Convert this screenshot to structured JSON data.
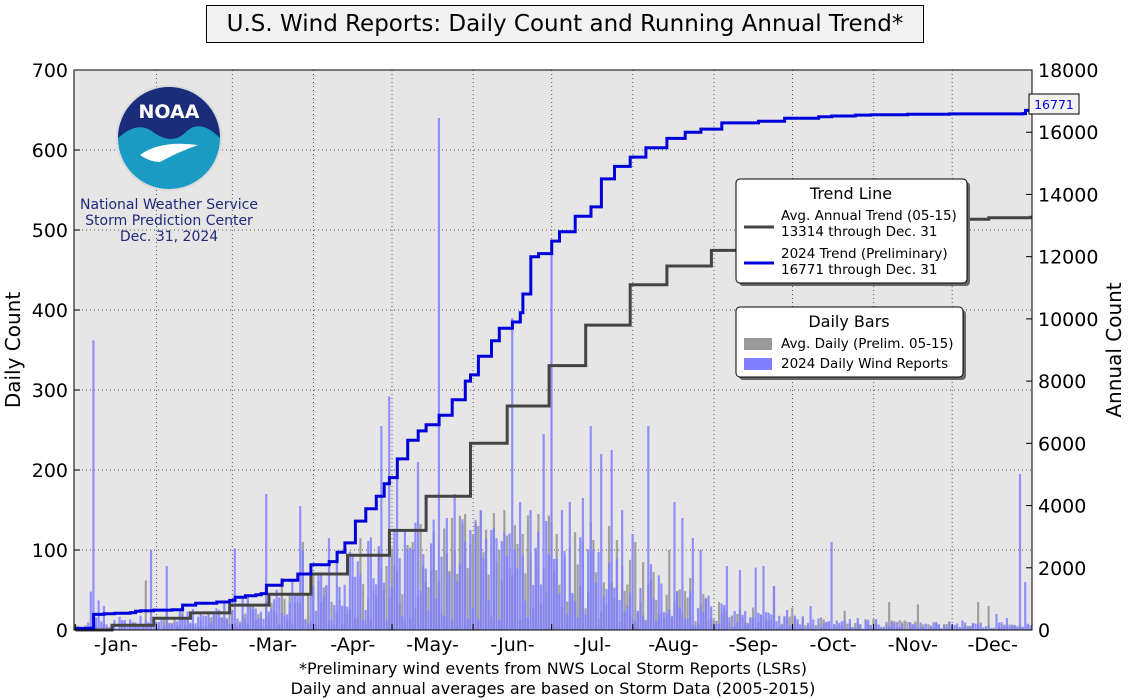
{
  "chart_data": {
    "type": "bar+line",
    "title": "U.S. Wind Reports: Daily Count and Running Annual Trend*",
    "ylabel_left": "Daily Count",
    "ylabel_right": "Annual Count",
    "ylim_left": [
      0,
      700
    ],
    "ylim_right": [
      0,
      18000
    ],
    "yticks_left": [
      "0",
      "100",
      "200",
      "300",
      "400",
      "500",
      "600",
      "700"
    ],
    "yticks_right": [
      "0",
      "2000",
      "4000",
      "6000",
      "8000",
      "10000",
      "12000",
      "14000",
      "16000",
      "18000"
    ],
    "months": [
      "-Jan-",
      "-Feb-",
      "-Mar-",
      "-Apr-",
      "-May-",
      "-Jun-",
      "-Jul-",
      "-Aug-",
      "-Sep-",
      "-Oct-",
      "-Nov-",
      "-Dec-"
    ],
    "grid": true,
    "final_value_label": "16771",
    "footnotes": [
      "*Preliminary wind events from NWS Local Storm Reports (LSRs)",
      "Daily and annual averages are based on Storm Data (2005-2015)"
    ],
    "trend_legend": {
      "title": "Trend Line",
      "entries": [
        {
          "line1": "Avg. Annual Trend (05-15)",
          "line2": "13314 through Dec. 31",
          "color": "#444444"
        },
        {
          "line1": "2024 Trend (Preliminary)",
          "line2": "16771 through Dec. 31",
          "color": "#0000dd"
        }
      ]
    },
    "bars_legend": {
      "title": "Daily Bars",
      "entries": [
        {
          "label": "Avg. Daily (Prelim. 05-15)",
          "color": "#999999"
        },
        {
          "label": "2024 Daily Wind Reports",
          "color": "#8080ff"
        }
      ]
    },
    "series": [
      {
        "name": "Avg. Annual Trend (05-15)",
        "type": "line",
        "axis": "right",
        "color": "#444444",
        "x_day": [
          1,
          15,
          31,
          45,
          60,
          75,
          91,
          105,
          121,
          135,
          152,
          166,
          182,
          196,
          213,
          227,
          244,
          258,
          274,
          288,
          305,
          319,
          335,
          350,
          366
        ],
        "y": [
          0,
          150,
          380,
          550,
          800,
          1150,
          1800,
          2400,
          3200,
          4300,
          6000,
          7200,
          8500,
          9800,
          11100,
          11700,
          12200,
          12500,
          12800,
          12900,
          13050,
          13100,
          13200,
          13250,
          13314
        ]
      },
      {
        "name": "2024 Trend (Preliminary)",
        "type": "line",
        "axis": "right",
        "color": "#0000dd",
        "x_day": [
          1,
          7,
          8,
          12,
          16,
          22,
          24,
          26,
          31,
          38,
          42,
          47,
          55,
          60,
          62,
          66,
          70,
          72,
          74,
          80,
          86,
          91,
          98,
          101,
          104,
          108,
          112,
          116,
          119,
          121,
          124,
          128,
          132,
          135,
          140,
          145,
          150,
          152,
          155,
          160,
          163,
          168,
          171,
          172,
          175,
          178,
          183,
          186,
          192,
          198,
          202,
          207,
          213,
          219,
          227,
          234,
          240,
          248,
          252,
          262,
          272,
          285,
          290,
          299,
          305,
          319,
          335,
          350,
          360,
          363,
          364,
          366
        ],
        "y": [
          50,
          60,
          500,
          520,
          540,
          560,
          600,
          620,
          640,
          650,
          800,
          860,
          900,
          950,
          1050,
          1100,
          1130,
          1170,
          1440,
          1600,
          1800,
          2100,
          2200,
          2500,
          2800,
          3500,
          3900,
          4300,
          4700,
          4900,
          5500,
          6100,
          6400,
          6600,
          6900,
          7400,
          8000,
          8200,
          8800,
          9300,
          9700,
          9900,
          10200,
          10800,
          12000,
          12100,
          12500,
          12800,
          13300,
          13600,
          14500,
          14900,
          15200,
          15500,
          15800,
          16000,
          16100,
          16300,
          16300,
          16350,
          16450,
          16500,
          16520,
          16550,
          16560,
          16580,
          16590,
          16590,
          16590,
          16600,
          16700,
          16771
        ]
      },
      {
        "name": "2024 Daily Wind Reports",
        "type": "bar",
        "axis": "left",
        "color": "#8080ff",
        "spikes": [
          [
            8,
            362
          ],
          [
            7,
            48
          ],
          [
            10,
            37
          ],
          [
            12,
            30
          ],
          [
            30,
            100
          ],
          [
            36,
            80
          ],
          [
            42,
            20
          ],
          [
            49,
            20
          ],
          [
            62,
            102
          ],
          [
            74,
            170
          ],
          [
            87,
            155
          ],
          [
            88,
            100
          ],
          [
            92,
            55
          ],
          [
            98,
            115
          ],
          [
            107,
            95
          ],
          [
            118,
            255
          ],
          [
            121,
            292
          ],
          [
            124,
            195
          ],
          [
            130,
            100
          ],
          [
            132,
            210
          ],
          [
            134,
            95
          ],
          [
            138,
            138
          ],
          [
            140,
            640
          ],
          [
            143,
            140
          ],
          [
            146,
            170
          ],
          [
            150,
            110
          ],
          [
            152,
            125
          ],
          [
            156,
            150
          ],
          [
            160,
            125
          ],
          [
            165,
            122
          ],
          [
            168,
            390
          ],
          [
            171,
            160
          ],
          [
            175,
            150
          ],
          [
            180,
            245
          ],
          [
            183,
            470
          ],
          [
            187,
            150
          ],
          [
            190,
            160
          ],
          [
            195,
            165
          ],
          [
            198,
            255
          ],
          [
            202,
            220
          ],
          [
            206,
            225
          ],
          [
            210,
            150
          ],
          [
            214,
            120
          ],
          [
            220,
            255
          ],
          [
            230,
            160
          ],
          [
            233,
            140
          ],
          [
            237,
            115
          ],
          [
            240,
            100
          ],
          [
            250,
            80
          ],
          [
            255,
            75
          ],
          [
            261,
            78
          ],
          [
            264,
            80
          ],
          [
            268,
            55
          ],
          [
            273,
            25
          ],
          [
            282,
            30
          ],
          [
            290,
            110
          ],
          [
            300,
            15
          ],
          [
            320,
            10
          ],
          [
            340,
            12
          ],
          [
            353,
            20
          ],
          [
            357,
            15
          ],
          [
            362,
            195
          ],
          [
            364,
            60
          ]
        ],
        "base": [
          [
            1,
            8
          ],
          [
            30,
            10
          ],
          [
            60,
            20
          ],
          [
            90,
            40
          ],
          [
            105,
            55
          ],
          [
            120,
            70
          ],
          [
            135,
            75
          ],
          [
            150,
            80
          ],
          [
            165,
            80
          ],
          [
            180,
            80
          ],
          [
            195,
            75
          ],
          [
            210,
            60
          ],
          [
            225,
            45
          ],
          [
            240,
            30
          ],
          [
            255,
            15
          ],
          [
            275,
            10
          ],
          [
            300,
            8
          ],
          [
            330,
            6
          ],
          [
            366,
            5
          ]
        ]
      },
      {
        "name": "Avg. Daily (Prelim. 05-15)",
        "type": "bar",
        "axis": "left",
        "color": "#999999",
        "spikes": [
          [
            28,
            62
          ],
          [
            36,
            25
          ],
          [
            42,
            30
          ],
          [
            56,
            15
          ],
          [
            80,
            65
          ],
          [
            88,
            110
          ],
          [
            92,
            70
          ],
          [
            110,
            115
          ],
          [
            120,
            80
          ],
          [
            130,
            110
          ],
          [
            145,
            140
          ],
          [
            150,
            145
          ],
          [
            155,
            130
          ],
          [
            165,
            150
          ],
          [
            172,
            120
          ],
          [
            178,
            145
          ],
          [
            185,
            120
          ],
          [
            198,
            135
          ],
          [
            205,
            130
          ],
          [
            215,
            110
          ],
          [
            228,
            100
          ],
          [
            236,
            65
          ],
          [
            241,
            45
          ],
          [
            247,
            35
          ],
          [
            260,
            28
          ],
          [
            268,
            55
          ],
          [
            275,
            28
          ],
          [
            295,
            24
          ],
          [
            312,
            35
          ],
          [
            323,
            32
          ],
          [
            346,
            35
          ],
          [
            350,
            30
          ]
        ],
        "base": [
          [
            1,
            3
          ],
          [
            30,
            6
          ],
          [
            60,
            12
          ],
          [
            90,
            30
          ],
          [
            105,
            45
          ],
          [
            120,
            60
          ],
          [
            135,
            75
          ],
          [
            150,
            85
          ],
          [
            165,
            85
          ],
          [
            180,
            80
          ],
          [
            195,
            75
          ],
          [
            210,
            60
          ],
          [
            225,
            35
          ],
          [
            240,
            25
          ],
          [
            255,
            15
          ],
          [
            275,
            10
          ],
          [
            300,
            8
          ],
          [
            330,
            6
          ],
          [
            366,
            4
          ]
        ]
      }
    ]
  },
  "branding": {
    "logo_text": "NOAA",
    "org_line1": "National Weather Service",
    "org_line2": "Storm Prediction Center",
    "date": "Dec. 31, 2024"
  }
}
